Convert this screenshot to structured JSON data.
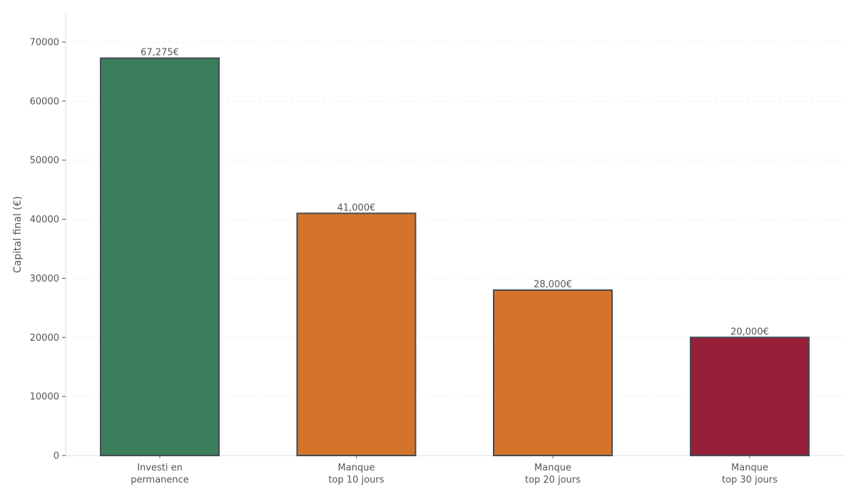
{
  "chart_data": {
    "type": "bar",
    "title": "",
    "xlabel": "",
    "ylabel": "Capital final (€)",
    "categories": [
      [
        "Investi en",
        "permanence"
      ],
      [
        "Manque",
        "top 10 jours"
      ],
      [
        "Manque",
        "top 20 jours"
      ],
      [
        "Manque",
        "top 30 jours"
      ]
    ],
    "values": [
      67275,
      41000,
      28000,
      20000
    ],
    "value_labels": [
      "67,275€",
      "41,000€",
      "28,000€",
      "20,000€"
    ],
    "colors": [
      "#3a7d5a",
      "#d4742a",
      "#d4742a",
      "#961e37"
    ],
    "bar_edge_color": "#444b55",
    "ylim": [
      0,
      75000
    ],
    "yticks": [
      0,
      10000,
      20000,
      30000,
      40000,
      50000,
      60000,
      70000
    ],
    "ytick_labels": [
      "0",
      "10000",
      "20000",
      "30000",
      "40000",
      "50000",
      "60000",
      "70000"
    ],
    "grid": {
      "axis": "y",
      "style": "dashed",
      "color": "#eeeeee"
    },
    "legend": null
  }
}
